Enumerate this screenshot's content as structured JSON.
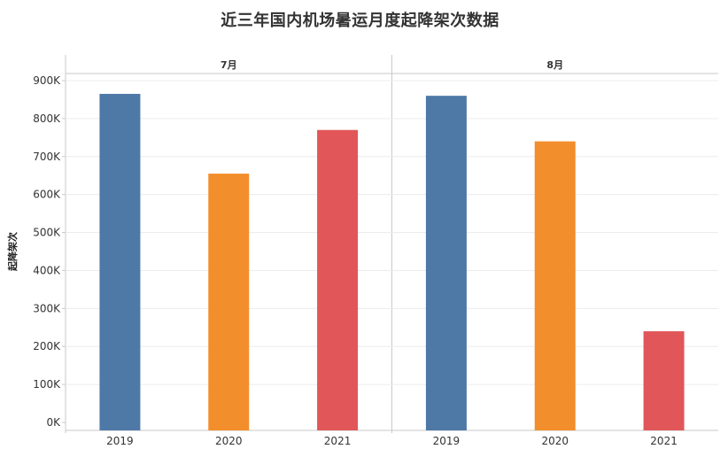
{
  "title": "近三年国内机场暑运月度起降架次数据",
  "chart_data": {
    "type": "bar",
    "title": "近三年国内机场暑运月度起降架次数据",
    "ylabel": "起降架次",
    "xlabel": "",
    "ylim": [
      0,
      900000
    ],
    "yticks": [
      0,
      100000,
      200000,
      300000,
      400000,
      500000,
      600000,
      700000,
      800000,
      900000
    ],
    "ytick_labels": [
      "0K",
      "100K",
      "200K",
      "300K",
      "400K",
      "500K",
      "600K",
      "700K",
      "800K",
      "900K"
    ],
    "grid": true,
    "categories": [
      "2019",
      "2020",
      "2021"
    ],
    "colors": [
      "#4e79a7",
      "#f28e2b",
      "#e15759"
    ],
    "panels": [
      {
        "label": "7月",
        "values": [
          865000,
          655000,
          770000
        ]
      },
      {
        "label": "8月",
        "values": [
          860000,
          740000,
          240000
        ]
      }
    ]
  }
}
